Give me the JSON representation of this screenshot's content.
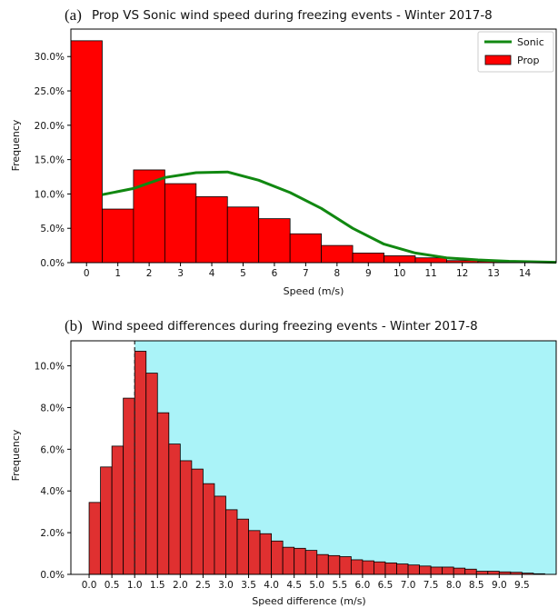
{
  "chart_data": [
    {
      "panel_label": "(a)",
      "type": "bar",
      "title": "Prop VS Sonic wind speed during freezing events  -  Winter 2017-8",
      "xlabel": "Speed (m/s)",
      "ylabel": "Frequency",
      "x_ticks": [
        "0",
        "1",
        "2",
        "3",
        "4",
        "5",
        "6",
        "7",
        "8",
        "9",
        "10",
        "11",
        "12",
        "13",
        "14"
      ],
      "y_ticks": [
        "0.0%",
        "5.0%",
        "10.0%",
        "15.0%",
        "20.0%",
        "25.0%",
        "30.0%"
      ],
      "ylim": [
        0,
        34
      ],
      "xlim": [
        -0.5,
        15
      ],
      "legend": {
        "position": "top-right",
        "entries": [
          "Sonic",
          "Prop"
        ]
      },
      "series": [
        {
          "name": "Prop",
          "kind": "histogram",
          "color": "#ff0000",
          "bin_width": 1,
          "bin_starts": [
            -0.5,
            0.5,
            1.5,
            2.5,
            3.5,
            4.5,
            5.5,
            6.5,
            7.5,
            8.5,
            9.5,
            10.5,
            11.5,
            12.5,
            13.5
          ],
          "values": [
            32.3,
            7.8,
            13.5,
            11.5,
            9.6,
            8.1,
            6.4,
            4.2,
            2.5,
            1.4,
            1.0,
            0.7,
            0.3,
            0.2,
            0.1
          ]
        },
        {
          "name": "Sonic",
          "kind": "line",
          "color": "#118811",
          "x": [
            0.5,
            1.5,
            2.5,
            3.5,
            4.5,
            5.5,
            6.5,
            7.5,
            8.5,
            9.5,
            10.5,
            11.5,
            12.5,
            13.5,
            14.5,
            15
          ],
          "values": [
            9.9,
            10.8,
            12.4,
            13.1,
            13.2,
            12.0,
            10.2,
            7.9,
            5.0,
            2.7,
            1.4,
            0.7,
            0.4,
            0.2,
            0.1,
            0.05
          ]
        }
      ]
    },
    {
      "panel_label": "(b)",
      "type": "bar",
      "title": "Wind speed differences during freezing events  -  Winter 2017-8",
      "xlabel": "Speed difference (m/s)",
      "ylabel": "Frequency",
      "x_ticks": [
        "0.0",
        "0.5",
        "1.0",
        "1.5",
        "2.0",
        "2.5",
        "3.0",
        "3.5",
        "4.0",
        "4.5",
        "5.0",
        "5.5",
        "6.0",
        "6.5",
        "7.0",
        "7.5",
        "8.0",
        "8.5",
        "9.0",
        "9.5"
      ],
      "y_ticks": [
        "0.0%",
        "2.0%",
        "4.0%",
        "6.0%",
        "8.0%",
        "10.0%"
      ],
      "ylim": [
        0,
        11.2
      ],
      "xlim": [
        -0.4,
        10.25
      ],
      "threshold_line": 1.0,
      "shaded_region_from": 1.0,
      "shade_color": "#aaf3f8",
      "series": [
        {
          "name": "",
          "kind": "histogram",
          "color": "#e03030",
          "bin_width": 0.25,
          "bin_starts": [
            0.0,
            0.25,
            0.5,
            0.75,
            1.0,
            1.25,
            1.5,
            1.75,
            2.0,
            2.25,
            2.5,
            2.75,
            3.0,
            3.25,
            3.5,
            3.75,
            4.0,
            4.25,
            4.5,
            4.75,
            5.0,
            5.25,
            5.5,
            5.75,
            6.0,
            6.25,
            6.5,
            6.75,
            7.0,
            7.25,
            7.5,
            7.75,
            8.0,
            8.25,
            8.5,
            8.75,
            9.0,
            9.25,
            9.5,
            9.75
          ],
          "values": [
            3.45,
            5.15,
            6.15,
            8.45,
            10.7,
            9.65,
            7.75,
            6.25,
            5.45,
            5.05,
            4.35,
            3.75,
            3.1,
            2.65,
            2.1,
            1.95,
            1.6,
            1.3,
            1.25,
            1.15,
            0.95,
            0.9,
            0.85,
            0.7,
            0.65,
            0.6,
            0.55,
            0.5,
            0.45,
            0.4,
            0.35,
            0.35,
            0.3,
            0.25,
            0.15,
            0.15,
            0.12,
            0.1,
            0.06,
            0.03
          ]
        }
      ]
    }
  ]
}
